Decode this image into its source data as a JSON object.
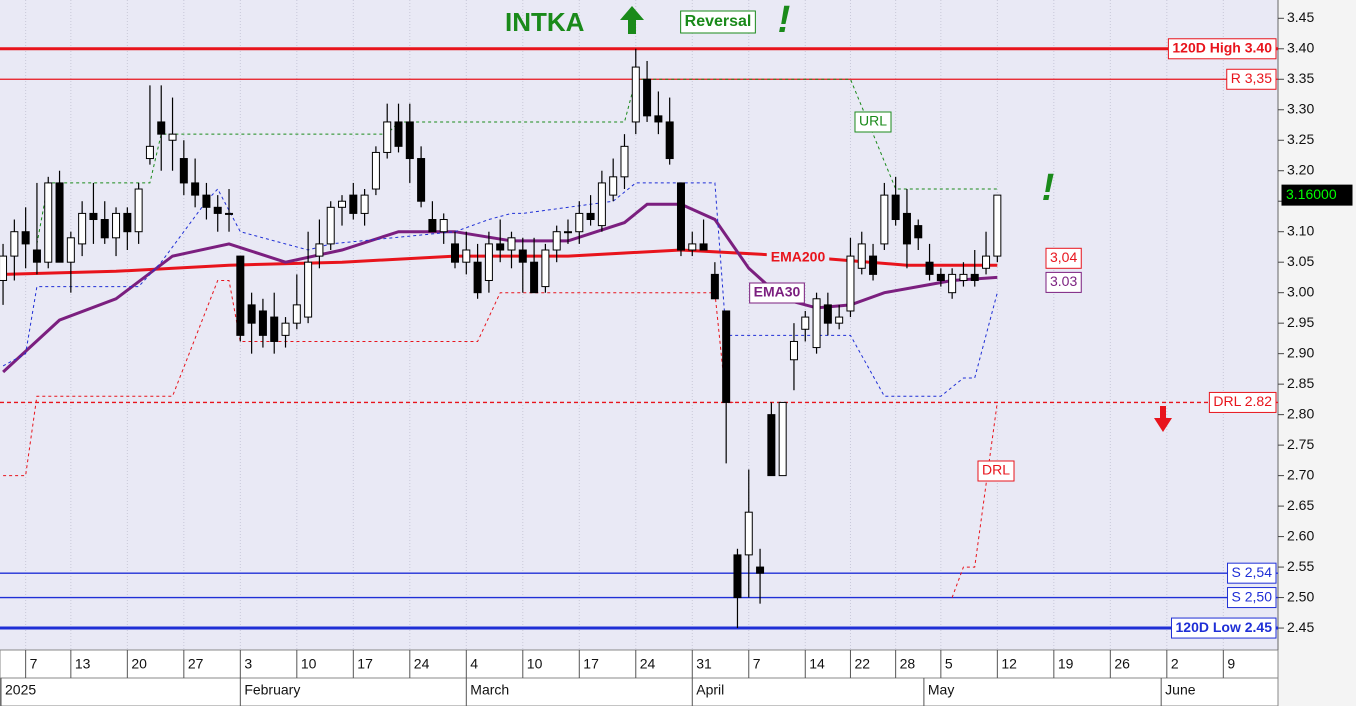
{
  "chart_data": {
    "type": "candlestick",
    "title": "INTKA",
    "annotations": [
      "Reversal",
      "!",
      "!"
    ],
    "open": [
      3.02,
      3.06,
      3.1,
      3.07,
      3.05,
      3.18,
      3.05,
      3.08,
      3.13,
      3.12,
      3.09,
      3.13,
      3.1,
      3.22,
      3.28,
      3.25,
      3.22,
      3.18,
      3.16,
      3.14,
      3.13,
      3.06,
      2.98,
      2.97,
      2.96,
      2.93,
      2.95,
      2.96,
      3.06,
      3.08,
      3.14,
      3.16,
      3.13,
      3.17,
      3.23,
      3.28,
      3.28,
      3.22,
      3.12,
      3.1,
      3.08,
      3.05,
      3.05,
      3.02,
      3.08,
      3.07,
      3.07,
      3.05,
      3.01,
      3.07,
      3.1,
      3.1,
      3.13,
      3.11,
      3.16,
      3.19,
      3.28,
      3.35,
      3.29,
      3.28,
      3.18,
      3.07,
      3.08,
      3.03,
      2.97,
      2.57,
      2.57,
      2.55,
      2.8,
      2.7,
      2.89,
      2.94,
      2.91,
      2.98,
      2.95,
      2.97,
      3.04,
      3.06,
      3.08,
      3.16,
      3.13,
      3.11,
      3.05,
      3.03,
      3.0,
      3.02,
      3.03,
      3.04,
      3.06
    ],
    "high": [
      3.08,
      3.12,
      3.14,
      3.18,
      3.19,
      3.2,
      3.1,
      3.15,
      3.18,
      3.15,
      3.14,
      3.14,
      3.18,
      3.34,
      3.34,
      3.32,
      3.25,
      3.22,
      3.18,
      3.16,
      3.17,
      3.06,
      3.0,
      2.99,
      3.0,
      2.96,
      3.03,
      3.1,
      3.12,
      3.15,
      3.16,
      3.18,
      3.17,
      3.24,
      3.31,
      3.31,
      3.31,
      3.24,
      3.15,
      3.13,
      3.1,
      3.1,
      3.08,
      3.1,
      3.12,
      3.1,
      3.09,
      3.09,
      3.08,
      3.11,
      3.12,
      3.15,
      3.16,
      3.2,
      3.22,
      3.26,
      3.4,
      3.38,
      3.33,
      3.32,
      3.18,
      3.1,
      3.12,
      3.05,
      2.97,
      2.58,
      2.71,
      2.58,
      2.82,
      2.82,
      2.95,
      2.97,
      3.0,
      3.0,
      2.98,
      3.09,
      3.1,
      3.08,
      3.18,
      3.19,
      3.17,
      3.12,
      3.08,
      3.04,
      3.04,
      3.05,
      3.07,
      3.1,
      3.16
    ],
    "low": [
      2.98,
      3.02,
      3.04,
      3.03,
      3.04,
      3.05,
      3.0,
      3.06,
      3.08,
      3.08,
      3.06,
      3.07,
      3.08,
      3.21,
      3.2,
      3.2,
      3.16,
      3.14,
      3.12,
      3.1,
      3.1,
      2.92,
      2.9,
      2.91,
      2.9,
      2.91,
      2.94,
      2.95,
      3.04,
      3.07,
      3.11,
      3.12,
      3.11,
      3.16,
      3.22,
      3.23,
      3.18,
      3.14,
      3.1,
      3.08,
      3.04,
      3.03,
      2.99,
      3.0,
      3.05,
      3.04,
      3.0,
      3.0,
      3.0,
      3.05,
      3.08,
      3.08,
      3.11,
      3.1,
      3.15,
      3.17,
      3.26,
      3.28,
      3.26,
      3.21,
      3.06,
      3.06,
      3.07,
      2.99,
      2.72,
      2.45,
      2.5,
      2.49,
      2.7,
      2.7,
      2.84,
      2.92,
      2.9,
      2.93,
      2.94,
      2.96,
      3.03,
      3.02,
      3.07,
      3.11,
      3.04,
      3.07,
      3.02,
      3.01,
      2.99,
      3.01,
      3.01,
      3.03,
      3.05
    ],
    "close": [
      3.06,
      3.1,
      3.08,
      3.05,
      3.18,
      3.05,
      3.09,
      3.13,
      3.12,
      3.09,
      3.13,
      3.1,
      3.17,
      3.24,
      3.26,
      3.26,
      3.18,
      3.16,
      3.14,
      3.13,
      3.13,
      2.93,
      2.95,
      2.93,
      2.92,
      2.95,
      2.98,
      3.05,
      3.08,
      3.14,
      3.15,
      3.13,
      3.16,
      3.23,
      3.28,
      3.24,
      3.22,
      3.15,
      3.1,
      3.12,
      3.05,
      3.07,
      3.0,
      3.08,
      3.07,
      3.09,
      3.05,
      3.0,
      3.07,
      3.1,
      3.1,
      3.13,
      3.12,
      3.18,
      3.19,
      3.24,
      3.37,
      3.29,
      3.28,
      3.22,
      3.07,
      3.08,
      3.07,
      2.99,
      2.82,
      2.5,
      2.64,
      2.54,
      2.7,
      2.82,
      2.92,
      2.96,
      2.99,
      2.95,
      2.96,
      3.06,
      3.08,
      3.03,
      3.16,
      3.12,
      3.08,
      3.09,
      3.03,
      3.02,
      3.03,
      3.03,
      3.02,
      3.06,
      3.16
    ],
    "series": [
      {
        "name": "EMA200",
        "color": "#e8141c",
        "x": [
          0,
          10,
          20,
          30,
          40,
          50,
          60,
          70,
          80,
          88
        ],
        "values": [
          3.03,
          3.035,
          3.045,
          3.05,
          3.06,
          3.06,
          3.07,
          3.06,
          3.045,
          3.045
        ]
      },
      {
        "name": "EMA30",
        "color": "#7b1f7f",
        "x": [
          0,
          5,
          10,
          15,
          20,
          25,
          30,
          35,
          40,
          45,
          50,
          55,
          57,
          60,
          63,
          66,
          69,
          72,
          75,
          78,
          81,
          84,
          88
        ],
        "values": [
          2.87,
          2.955,
          2.99,
          3.06,
          3.08,
          3.05,
          3.07,
          3.1,
          3.1,
          3.085,
          3.085,
          3.115,
          3.145,
          3.145,
          3.12,
          3.04,
          2.99,
          2.975,
          2.98,
          3.0,
          3.01,
          3.02,
          3.025
        ]
      },
      {
        "name": "URL",
        "color": "#1a8a1a",
        "x": [
          3,
          4,
          13,
          14,
          34,
          35,
          55,
          56,
          75,
          79,
          88
        ],
        "values": [
          3.08,
          3.18,
          3.18,
          3.26,
          3.26,
          3.28,
          3.28,
          3.35,
          3.35,
          3.17,
          3.17
        ]
      },
      {
        "name": "DRL",
        "color": "#e8141c",
        "x": [
          0,
          2,
          3,
          15,
          19,
          20,
          21,
          42,
          44,
          63,
          64,
          65,
          75,
          84,
          85,
          86,
          88
        ],
        "values": [
          2.7,
          2.7,
          2.83,
          2.83,
          3.02,
          3.02,
          2.92,
          2.92,
          3.0,
          3.0,
          2.82,
          2.82,
          null,
          2.5,
          2.55,
          2.55,
          2.82
        ]
      },
      {
        "color": "#1f2fd6",
        "x": [
          0,
          2,
          3,
          12,
          14,
          18,
          19,
          21,
          27,
          29,
          40,
          43,
          45,
          46,
          54,
          56,
          63,
          64,
          75,
          78,
          83,
          85,
          86,
          88
        ],
        "values": [
          2.88,
          2.9,
          3.01,
          3.01,
          3.05,
          3.15,
          3.17,
          3.1,
          3.07,
          3.08,
          3.1,
          3.12,
          3.13,
          3.13,
          3.15,
          3.18,
          3.18,
          2.93,
          2.93,
          2.83,
          2.83,
          2.86,
          2.86,
          3.0
        ]
      }
    ],
    "levels": [
      {
        "name": "120D High 3.40",
        "value": 3.4,
        "color": "#e8141c",
        "style": "thick"
      },
      {
        "name": "R 3,35",
        "value": 3.35,
        "color": "#e8141c",
        "style": "thin"
      },
      {
        "name": "DRL 2.82",
        "value": 2.82,
        "color": "#e8141c",
        "style": "dashed"
      },
      {
        "name": "S 2,54",
        "value": 2.54,
        "color": "#1f2fd6",
        "style": "thin"
      },
      {
        "name": "S 2,50",
        "value": 2.5,
        "color": "#1f2fd6",
        "style": "thin"
      },
      {
        "name": "120D Low 2.45",
        "value": 2.45,
        "color": "#1f2fd6",
        "style": "thick"
      }
    ],
    "end_labels": {
      "values": [
        3.04,
        3.03,
        3.16
      ],
      "value_labels": [
        "3,04",
        "3.03",
        "3.16000"
      ],
      "colors": [
        "#e8141c",
        "#7b1f7f",
        "#00ff00"
      ]
    },
    "xlim": [
      -0.27,
      112.84
    ],
    "ylim": [
      2.414,
      3.48
    ],
    "yticks": [
      2.45,
      {
        "value": 2.5,
        "label": "2.50"
      },
      2.55,
      {
        "value": 2.6,
        "label": "2.60"
      },
      2.65,
      {
        "value": 2.7,
        "label": "2.70"
      },
      2.75,
      {
        "value": 2.8,
        "label": "2.80"
      },
      2.85,
      {
        "value": 2.9,
        "label": "2.90"
      },
      2.95,
      {
        "value": 3.0,
        "label": "3.00"
      },
      3.05,
      {
        "value": 3.1,
        "label": "3.10"
      },
      3.15,
      {
        "value": 3.2,
        "label": "3.20"
      },
      3.25,
      {
        "value": 3.3,
        "label": "3.30"
      },
      3.35,
      {
        "value": 3.4,
        "label": "3.40"
      },
      3.45
    ],
    "xticks": [
      {
        "value": 2,
        "label": "7"
      },
      {
        "value": 6,
        "label": "13"
      },
      {
        "value": 11,
        "label": "20"
      },
      {
        "value": 16,
        "label": "27"
      },
      {
        "value": 21,
        "label": "3"
      },
      {
        "value": 26,
        "label": "10"
      },
      {
        "value": 31,
        "label": "17"
      },
      {
        "value": 36,
        "label": "24"
      },
      {
        "value": 41,
        "label": "4"
      },
      {
        "value": 46,
        "label": "10"
      },
      {
        "value": 51,
        "label": "17"
      },
      {
        "value": 56,
        "label": "24"
      },
      {
        "value": 61,
        "label": "31"
      },
      {
        "value": 66,
        "label": "7"
      },
      {
        "value": 71,
        "label": "14"
      },
      {
        "value": 75,
        "label": "22"
      },
      {
        "value": 79,
        "label": "28"
      },
      {
        "value": 83,
        "label": "5"
      },
      {
        "value": 88,
        "label": "12"
      },
      {
        "value": 93,
        "label": "19"
      },
      {
        "value": 98,
        "label": "26"
      },
      {
        "value": 103,
        "label": "2"
      },
      {
        "value": 108,
        "label": "9"
      }
    ],
    "month_ticks": [
      {
        "value": -0.2,
        "label": "2025"
      },
      {
        "value": 21,
        "label": "February"
      },
      {
        "value": 41,
        "label": "March"
      },
      {
        "value": 61,
        "label": "April"
      },
      {
        "value": 81.5,
        "label": "May"
      },
      {
        "value": 102.5,
        "label": "June"
      }
    ],
    "grid": "x"
  }
}
